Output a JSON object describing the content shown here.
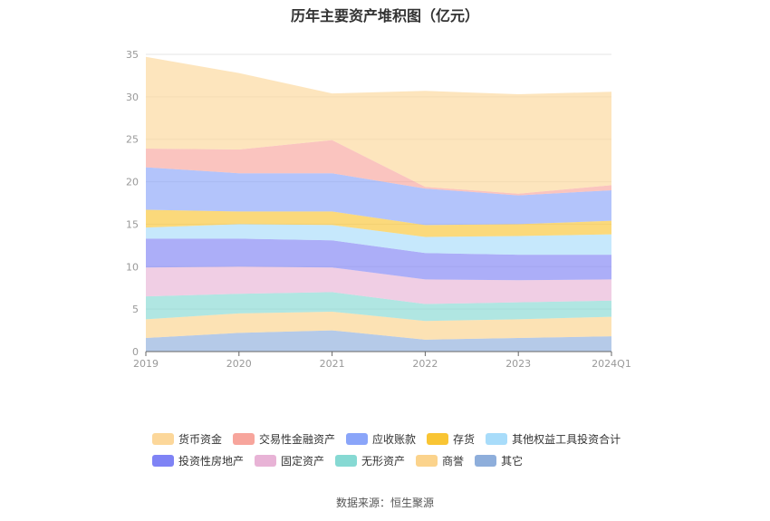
{
  "chart_data": {
    "type": "area",
    "stacked": true,
    "title": "历年主要资产堆积图（亿元）",
    "categories": [
      "2019",
      "2020",
      "2021",
      "2022",
      "2023",
      "2024Q1"
    ],
    "ylim": [
      0,
      35
    ],
    "yticks": [
      0,
      5,
      10,
      15,
      20,
      25,
      30,
      35
    ],
    "series": [
      {
        "name": "其它",
        "color": "#8eaedb",
        "values": [
          1.6,
          2.2,
          2.5,
          1.4,
          1.6,
          1.8
        ]
      },
      {
        "name": "商誉",
        "color": "#fbd38c",
        "values": [
          2.2,
          2.3,
          2.2,
          2.2,
          2.2,
          2.3
        ]
      },
      {
        "name": "无形资产",
        "color": "#86d9d3",
        "values": [
          2.7,
          2.3,
          2.3,
          2.0,
          2.0,
          1.9
        ]
      },
      {
        "name": "固定资产",
        "color": "#e8b3d6",
        "values": [
          3.4,
          3.2,
          2.9,
          2.9,
          2.6,
          2.5
        ]
      },
      {
        "name": "投资性房地产",
        "color": "#7f83f5",
        "values": [
          3.4,
          3.3,
          3.2,
          3.1,
          3.0,
          2.9
        ]
      },
      {
        "name": "其他权益工具投资合计",
        "color": "#a8dcfa",
        "values": [
          1.3,
          1.7,
          1.8,
          1.9,
          2.2,
          2.4
        ]
      },
      {
        "name": "存货",
        "color": "#f9c534",
        "values": [
          2.1,
          1.5,
          1.6,
          1.4,
          1.4,
          1.6
        ]
      },
      {
        "name": "应收账款",
        "color": "#8aa5f9",
        "values": [
          5.0,
          4.5,
          4.5,
          4.3,
          3.4,
          3.6
        ]
      },
      {
        "name": "交易性金融资产",
        "color": "#f7a59c",
        "values": [
          2.2,
          2.8,
          3.9,
          0.2,
          0.2,
          0.6
        ]
      },
      {
        "name": "货币资金",
        "color": "#fcd79a",
        "values": [
          10.8,
          9.0,
          5.5,
          11.3,
          11.7,
          11.0
        ]
      }
    ],
    "legend": [
      [
        "货币资金",
        "交易性金融资产",
        "应收账款",
        "存货",
        "其他权益工具投资合计"
      ],
      [
        "投资性房地产",
        "固定资产",
        "无形资产",
        "商誉",
        "其它"
      ]
    ],
    "legend_position": "bottom"
  },
  "source_text": "数据来源：恒生聚源"
}
